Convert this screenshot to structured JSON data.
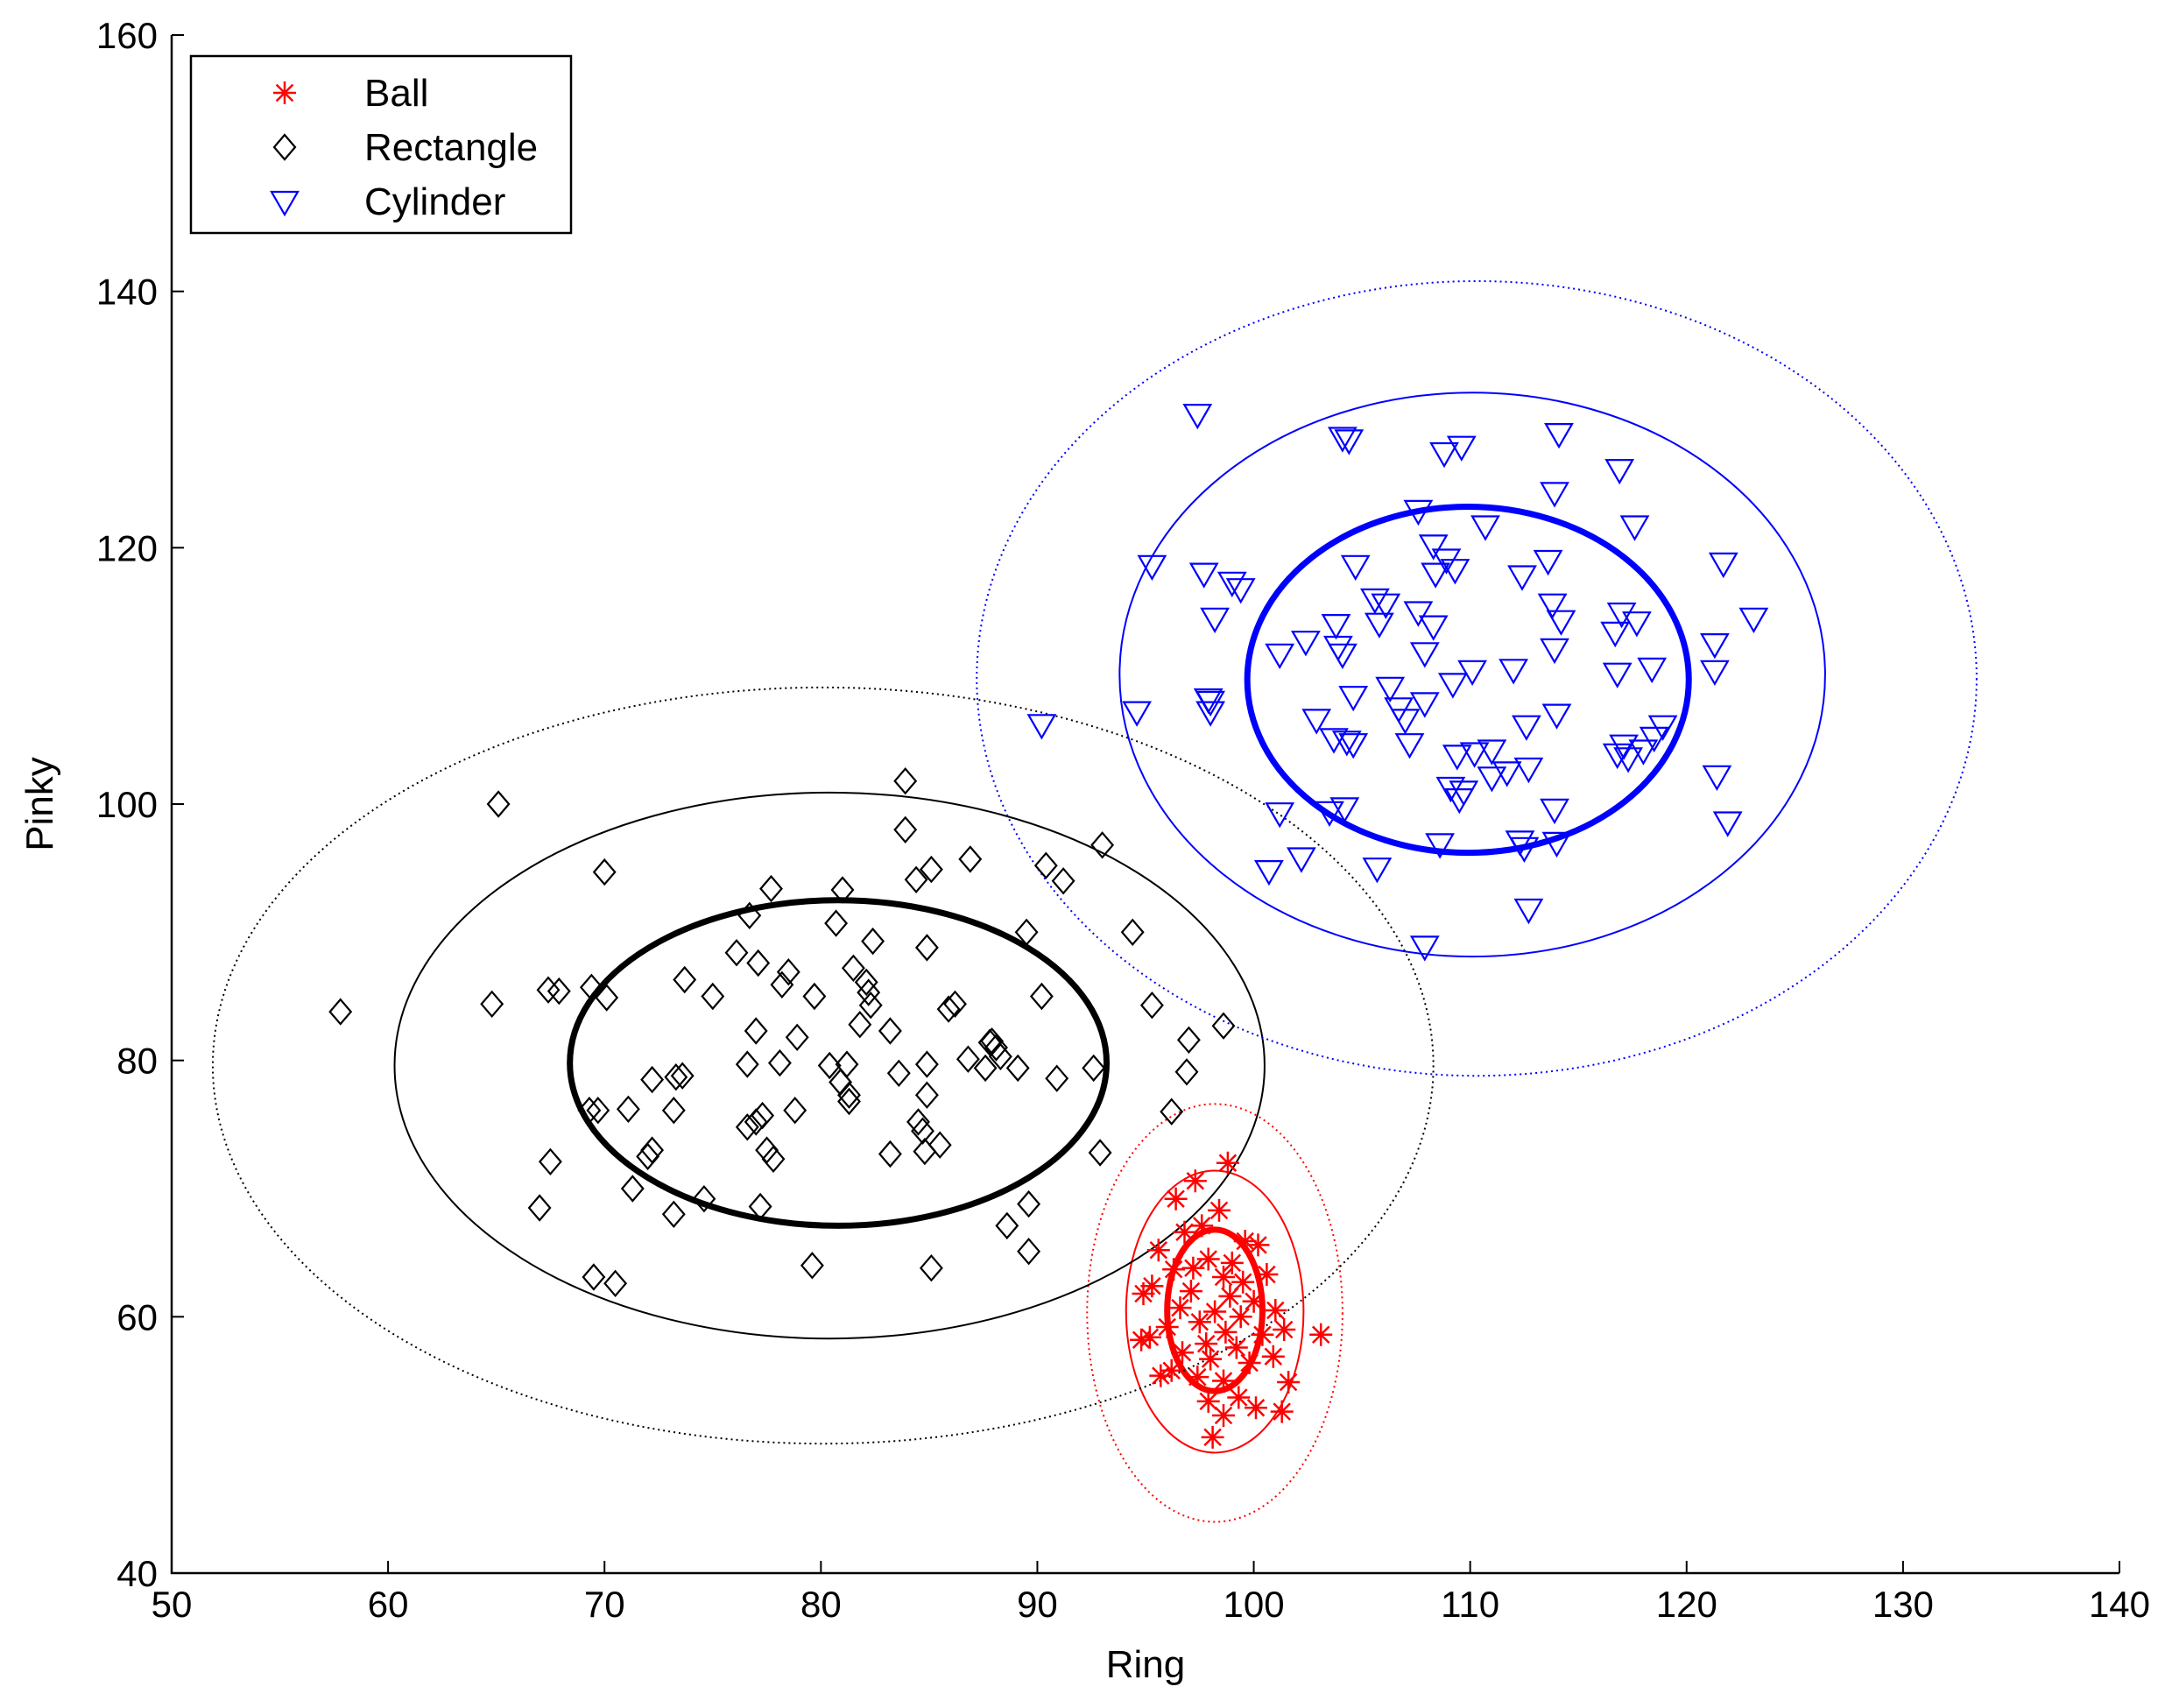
{
  "chart_data": {
    "type": "scatter",
    "title": "",
    "xlabel": "Ring",
    "ylabel": "Pinky",
    "xlim": [
      50,
      140
    ],
    "ylim": [
      40,
      160
    ],
    "xticks": [
      50,
      60,
      70,
      80,
      90,
      100,
      110,
      120,
      130,
      140
    ],
    "yticks": [
      40,
      60,
      80,
      100,
      120,
      140,
      160
    ],
    "grid": false,
    "legend_position": "top-left",
    "series": [
      {
        "name": "Ball",
        "marker": "asterisk",
        "color": "#ff0000",
        "points": [
          [
            98.8,
            72.0
          ],
          [
            97.3,
            70.6
          ],
          [
            96.4,
            69.2
          ],
          [
            98.4,
            68.3
          ],
          [
            97.6,
            67.1
          ],
          [
            96.8,
            66.6
          ],
          [
            99.6,
            65.9
          ],
          [
            100.2,
            65.6
          ],
          [
            95.6,
            65.2
          ],
          [
            97.9,
            64.5
          ],
          [
            99.0,
            64.2
          ],
          [
            96.3,
            63.7
          ],
          [
            98.6,
            63.1
          ],
          [
            100.6,
            63.3
          ],
          [
            95.3,
            62.4
          ],
          [
            97.1,
            62.0
          ],
          [
            98.9,
            61.6
          ],
          [
            100.0,
            61.2
          ],
          [
            94.9,
            61.8
          ],
          [
            96.6,
            60.7
          ],
          [
            98.2,
            60.4
          ],
          [
            99.4,
            60.0
          ],
          [
            101.0,
            60.5
          ],
          [
            97.5,
            59.6
          ],
          [
            96.0,
            59.2
          ],
          [
            98.7,
            58.8
          ],
          [
            100.4,
            58.6
          ],
          [
            101.4,
            59.0
          ],
          [
            95.2,
            58.4
          ],
          [
            97.8,
            57.9
          ],
          [
            99.2,
            57.6
          ],
          [
            96.7,
            57.2
          ],
          [
            98.0,
            56.7
          ],
          [
            99.8,
            56.4
          ],
          [
            100.9,
            56.9
          ],
          [
            96.2,
            55.8
          ],
          [
            97.4,
            55.3
          ],
          [
            98.6,
            55.0
          ],
          [
            101.6,
            54.9
          ],
          [
            95.7,
            55.4
          ],
          [
            99.3,
            53.7
          ],
          [
            97.9,
            53.4
          ],
          [
            100.1,
            52.9
          ],
          [
            98.6,
            52.3
          ],
          [
            101.3,
            52.6
          ],
          [
            98.1,
            50.6
          ],
          [
            103.1,
            58.6
          ],
          [
            94.8,
            58.2
          ],
          [
            97.2,
            63.8
          ],
          [
            99.5,
            62.7
          ]
        ]
      },
      {
        "name": "Rectangle",
        "marker": "diamond",
        "color": "#000000",
        "points": [
          [
            57.8,
            83.8
          ],
          [
            65.1,
            100.0
          ],
          [
            64.8,
            84.4
          ],
          [
            67.4,
            85.5
          ],
          [
            67.9,
            85.4
          ],
          [
            69.4,
            85.7
          ],
          [
            70.1,
            84.9
          ],
          [
            70.0,
            94.7
          ],
          [
            67.5,
            72.1
          ],
          [
            67.0,
            68.5
          ],
          [
            69.3,
            76.1
          ],
          [
            69.7,
            76.1
          ],
          [
            71.1,
            76.2
          ],
          [
            71.3,
            70.0
          ],
          [
            72.0,
            72.5
          ],
          [
            72.2,
            73.0
          ],
          [
            72.2,
            78.5
          ],
          [
            73.2,
            76.1
          ],
          [
            73.3,
            78.7
          ],
          [
            73.6,
            78.8
          ],
          [
            73.7,
            86.3
          ],
          [
            73.2,
            68.0
          ],
          [
            74.6,
            69.2
          ],
          [
            75.0,
            85.0
          ],
          [
            76.1,
            88.4
          ],
          [
            76.7,
            91.3
          ],
          [
            77.0,
            82.3
          ],
          [
            77.1,
            87.6
          ],
          [
            76.6,
            79.7
          ],
          [
            76.6,
            74.8
          ],
          [
            77.0,
            75.2
          ],
          [
            77.3,
            75.7
          ],
          [
            77.5,
            73.0
          ],
          [
            77.8,
            72.3
          ],
          [
            77.2,
            68.6
          ],
          [
            77.7,
            93.4
          ],
          [
            78.2,
            85.9
          ],
          [
            78.5,
            86.9
          ],
          [
            78.1,
            79.8
          ],
          [
            78.9,
            81.8
          ],
          [
            79.7,
            85.0
          ],
          [
            78.8,
            76.1
          ],
          [
            79.6,
            64.0
          ],
          [
            80.4,
            79.6
          ],
          [
            80.7,
            90.7
          ],
          [
            81.0,
            93.3
          ],
          [
            81.2,
            79.7
          ],
          [
            80.9,
            78.3
          ],
          [
            81.3,
            77.3
          ],
          [
            81.3,
            76.8
          ],
          [
            81.5,
            87.2
          ],
          [
            81.8,
            82.8
          ],
          [
            82.1,
            86.1
          ],
          [
            82.3,
            84.3
          ],
          [
            82.4,
            89.3
          ],
          [
            82.2,
            85.3
          ],
          [
            83.2,
            82.3
          ],
          [
            83.6,
            79.0
          ],
          [
            83.2,
            72.7
          ],
          [
            83.9,
            98.0
          ],
          [
            83.9,
            101.8
          ],
          [
            84.4,
            94.1
          ],
          [
            84.5,
            75.2
          ],
          [
            84.7,
            74.5
          ],
          [
            84.8,
            72.9
          ],
          [
            84.9,
            77.3
          ],
          [
            84.9,
            79.7
          ],
          [
            84.9,
            88.8
          ],
          [
            85.1,
            94.9
          ],
          [
            85.1,
            63.8
          ],
          [
            85.5,
            73.4
          ],
          [
            85.9,
            84.0
          ],
          [
            86.2,
            84.4
          ],
          [
            86.8,
            80.1
          ],
          [
            86.9,
            95.7
          ],
          [
            87.6,
            79.4
          ],
          [
            87.8,
            81.4
          ],
          [
            87.9,
            81.5
          ],
          [
            88.1,
            81.0
          ],
          [
            88.3,
            80.3
          ],
          [
            88.6,
            67.1
          ],
          [
            89.1,
            79.4
          ],
          [
            89.5,
            90.0
          ],
          [
            89.6,
            68.8
          ],
          [
            89.6,
            65.1
          ],
          [
            90.2,
            85.0
          ],
          [
            90.4,
            95.2
          ],
          [
            90.9,
            78.6
          ],
          [
            91.2,
            94.0
          ],
          [
            92.6,
            79.4
          ],
          [
            92.9,
            72.8
          ],
          [
            93.0,
            96.8
          ],
          [
            94.4,
            90.0
          ],
          [
            95.3,
            84.3
          ],
          [
            96.2,
            76.0
          ],
          [
            96.9,
            79.1
          ],
          [
            97.0,
            81.6
          ],
          [
            98.6,
            82.7
          ],
          [
            69.5,
            63.1
          ],
          [
            70.5,
            62.6
          ]
        ]
      },
      {
        "name": "Cylinder",
        "marker": "triangle-down",
        "color": "#0000ff",
        "points": [
          [
            97.4,
            130.4
          ],
          [
            104.1,
            128.6
          ],
          [
            104.4,
            128.4
          ],
          [
            108.8,
            127.4
          ],
          [
            109.6,
            127.9
          ],
          [
            114.1,
            128.9
          ],
          [
            116.9,
            126.1
          ],
          [
            113.9,
            124.3
          ],
          [
            107.6,
            122.9
          ],
          [
            110.7,
            121.7
          ],
          [
            117.6,
            121.7
          ],
          [
            108.3,
            120.2
          ],
          [
            108.4,
            118.0
          ],
          [
            108.9,
            119.1
          ],
          [
            109.3,
            118.3
          ],
          [
            104.7,
            118.6
          ],
          [
            97.7,
            118.0
          ],
          [
            99.0,
            117.3
          ],
          [
            99.4,
            116.8
          ],
          [
            95.3,
            118.6
          ],
          [
            121.7,
            118.8
          ],
          [
            112.4,
            117.8
          ],
          [
            113.8,
            115.6
          ],
          [
            114.2,
            114.3
          ],
          [
            117.0,
            114.9
          ],
          [
            117.7,
            114.2
          ],
          [
            116.7,
            113.4
          ],
          [
            123.1,
            114.5
          ],
          [
            121.3,
            112.5
          ],
          [
            121.3,
            110.4
          ],
          [
            118.4,
            110.6
          ],
          [
            116.8,
            110.2
          ],
          [
            113.9,
            112.1
          ],
          [
            112.0,
            110.5
          ],
          [
            110.1,
            110.4
          ],
          [
            109.2,
            109.4
          ],
          [
            106.1,
            115.6
          ],
          [
            105.8,
            114.1
          ],
          [
            103.8,
            114.0
          ],
          [
            103.9,
            112.3
          ],
          [
            104.1,
            111.7
          ],
          [
            107.6,
            115.0
          ],
          [
            108.3,
            113.9
          ],
          [
            107.9,
            111.8
          ],
          [
            101.2,
            111.7
          ],
          [
            98.2,
            114.5
          ],
          [
            98.0,
            108.0
          ],
          [
            98.0,
            107.2
          ],
          [
            102.9,
            106.6
          ],
          [
            103.7,
            105.1
          ],
          [
            104.3,
            104.9
          ],
          [
            104.6,
            104.7
          ],
          [
            104.6,
            108.4
          ],
          [
            106.3,
            109.1
          ],
          [
            106.7,
            107.5
          ],
          [
            107.0,
            106.6
          ],
          [
            107.2,
            104.7
          ],
          [
            107.9,
            107.9
          ],
          [
            109.4,
            103.8
          ],
          [
            110.2,
            104.0
          ],
          [
            111.0,
            104.2
          ],
          [
            111.7,
            102.5
          ],
          [
            112.6,
            106.1
          ],
          [
            112.7,
            102.8
          ],
          [
            114.0,
            107.0
          ],
          [
            116.8,
            103.9
          ],
          [
            117.1,
            104.6
          ],
          [
            117.3,
            103.6
          ],
          [
            118.0,
            104.2
          ],
          [
            118.5,
            105.2
          ],
          [
            118.9,
            106.1
          ],
          [
            109.1,
            101.3
          ],
          [
            109.7,
            101.0
          ],
          [
            109.5,
            100.4
          ],
          [
            111.0,
            102.1
          ],
          [
            108.6,
            96.9
          ],
          [
            112.5,
            96.6
          ],
          [
            112.3,
            97.1
          ],
          [
            114.0,
            97.0
          ],
          [
            113.9,
            99.6
          ],
          [
            103.5,
            99.4
          ],
          [
            104.2,
            99.7
          ],
          [
            101.2,
            99.3
          ],
          [
            100.7,
            94.8
          ],
          [
            102.2,
            95.8
          ],
          [
            105.7,
            95.0
          ],
          [
            107.9,
            88.9
          ],
          [
            112.7,
            91.8
          ],
          [
            90.2,
            106.2
          ],
          [
            94.6,
            107.2
          ],
          [
            97.9,
            108.2
          ],
          [
            121.4,
            102.2
          ],
          [
            121.9,
            98.6
          ],
          [
            105.6,
            116.0
          ],
          [
            113.6,
            119.0
          ],
          [
            102.4,
            112.7
          ]
        ]
      }
    ],
    "ellipses": [
      {
        "series": "Ball",
        "style": "bold",
        "center": [
          98.2,
          60.5
        ],
        "rx": 2.2,
        "ry": 6.3
      },
      {
        "series": "Ball",
        "style": "thin",
        "center": [
          98.2,
          60.4
        ],
        "rx": 4.1,
        "ry": 11.0
      },
      {
        "series": "Ball",
        "style": "dotted",
        "center": [
          98.2,
          60.3
        ],
        "rx": 5.9,
        "ry": 16.3
      },
      {
        "series": "Rectangle",
        "style": "bold",
        "center": [
          80.8,
          79.8
        ],
        "rx": 12.4,
        "ry": 12.7
      },
      {
        "series": "Rectangle",
        "style": "thin",
        "center": [
          80.4,
          79.6
        ],
        "rx": 20.1,
        "ry": 21.3
      },
      {
        "series": "Rectangle",
        "style": "dotted",
        "center": [
          80.1,
          79.6
        ],
        "rx": 28.2,
        "ry": 29.5
      },
      {
        "series": "Cylinder",
        "style": "bold",
        "center": [
          109.9,
          109.7
        ],
        "rx": 10.2,
        "ry": 13.5
      },
      {
        "series": "Cylinder",
        "style": "thin",
        "center": [
          110.1,
          110.1
        ],
        "rx": 16.3,
        "ry": 22.0
      },
      {
        "series": "Cylinder",
        "style": "dotted",
        "center": [
          110.3,
          109.8
        ],
        "rx": 23.1,
        "ry": 31.0
      }
    ]
  }
}
